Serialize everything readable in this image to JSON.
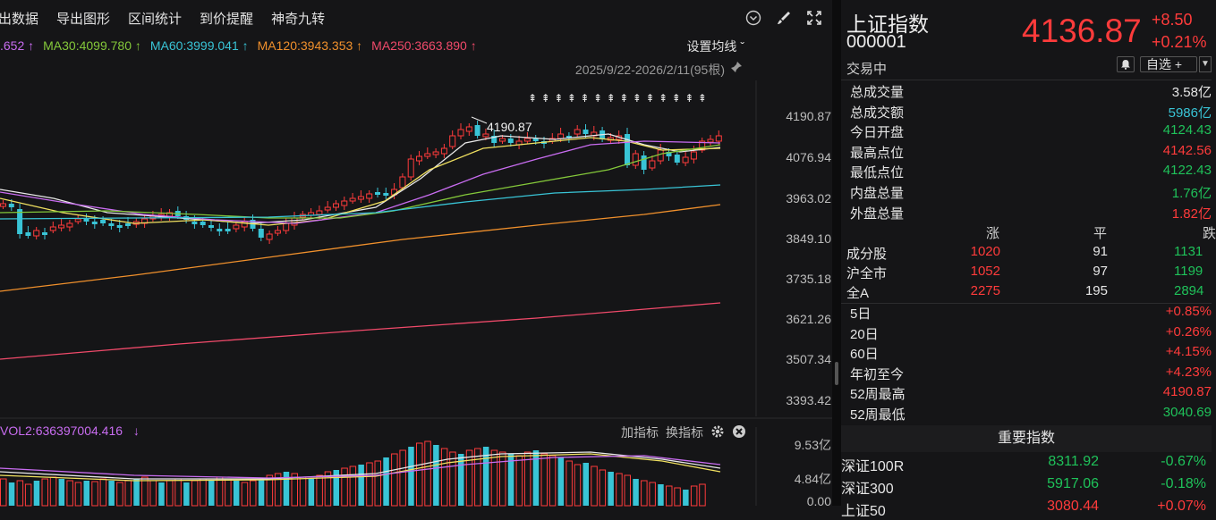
{
  "toolbar": {
    "items": [
      "出数据",
      "导出图形",
      "区间统计",
      "到价提醒",
      "神奇九转"
    ]
  },
  "ma_legend": [
    {
      "label": ".652",
      "arrow": "↑",
      "color": "#c86cf0"
    },
    {
      "label": "MA30:4099.780",
      "arrow": "↑",
      "color": "#84c83a"
    },
    {
      "label": "MA60:3999.041",
      "arrow": "↑",
      "color": "#39c4d6"
    },
    {
      "label": "MA120:3943.353",
      "arrow": "↑",
      "color": "#f0902c"
    },
    {
      "label": "MA250:3663.890",
      "arrow": "↑",
      "color": "#f04a6a"
    }
  ],
  "set_ma_label": "设置均线 ˇ",
  "range_label": "2025/9/22-2026/2/11(95根)",
  "price_axis": [
    "4190.87",
    "4076.94",
    "3963.02",
    "3849.10",
    "3735.18",
    "3621.26",
    "3507.34",
    "3393.42"
  ],
  "high_marker": "4190.87",
  "volume": {
    "label": "VOL2:636397004.416",
    "arrow": "↓",
    "add_indicator": "加指标",
    "switch_indicator": "换指标",
    "axis": [
      "9.53亿",
      "4.84亿",
      "0.00"
    ]
  },
  "chart_data": {
    "type": "candlestick",
    "price_range": [
      3393.42,
      4250
    ],
    "ma_series": [
      {
        "name": "MA30",
        "color": "#84c83a"
      },
      {
        "name": "MA60",
        "color": "#39c4d6"
      },
      {
        "name": "MA120",
        "color": "#f0902c"
      },
      {
        "name": "MA250",
        "color": "#f04a6a"
      }
    ]
  },
  "quote": {
    "name": "上证指数",
    "code": "000001",
    "status": "交易中",
    "price": "4136.87",
    "change": "+8.50",
    "change_pct": "+0.21%",
    "watchlist": "自选 +"
  },
  "stats": [
    {
      "label": "总成交量",
      "value": "3.58亿",
      "tone": "white"
    },
    {
      "label": "总成交额",
      "value": "5986亿",
      "tone": "cyan"
    },
    {
      "label": "今日开盘",
      "value": "4124.43",
      "tone": "green"
    },
    {
      "label": "最高点位",
      "value": "4142.56",
      "tone": "red"
    },
    {
      "label": "最低点位",
      "value": "4122.43",
      "tone": "green"
    },
    {
      "label": "内盘总量",
      "value": "1.76亿",
      "tone": "green"
    },
    {
      "label": "外盘总量",
      "value": "1.82亿",
      "tone": "red"
    }
  ],
  "breadth": {
    "headers": [
      "涨",
      "平",
      "跌"
    ],
    "rows": [
      {
        "label": "成分股",
        "up": "1020",
        "flat": "91",
        "down": "1131"
      },
      {
        "label": "沪全市",
        "up": "1052",
        "flat": "97",
        "down": "1199"
      },
      {
        "label": "全A",
        "up": "2275",
        "flat": "195",
        "down": "2894"
      }
    ]
  },
  "performance": [
    {
      "label": "5日",
      "value": "+0.85%",
      "tone": "red"
    },
    {
      "label": "20日",
      "value": "+0.26%",
      "tone": "red"
    },
    {
      "label": "60日",
      "value": "+4.15%",
      "tone": "red"
    },
    {
      "label": "年初至今",
      "value": "+4.23%",
      "tone": "red"
    },
    {
      "label": "52周最高",
      "value": "4190.87",
      "tone": "red"
    },
    {
      "label": "52周最低",
      "value": "3040.69",
      "tone": "green"
    }
  ],
  "important_indices": {
    "title": "重要指数",
    "rows": [
      {
        "name": "深证100R",
        "value": "8311.92",
        "pct": "-0.67%",
        "tone": "green"
      },
      {
        "name": "深证300",
        "value": "5917.06",
        "pct": "-0.18%",
        "tone": "green"
      },
      {
        "name": "上证50",
        "value": "3080.44",
        "pct": "+0.07%",
        "tone": "red"
      }
    ]
  }
}
